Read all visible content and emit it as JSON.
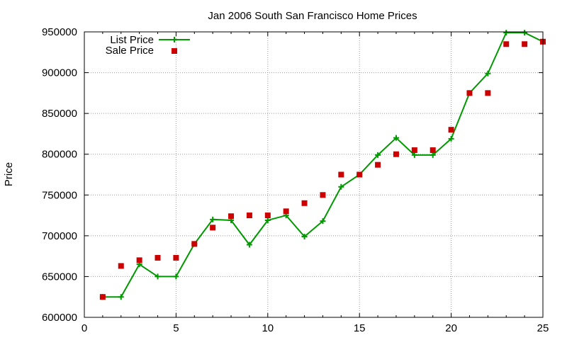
{
  "chart_data": {
    "type": "line",
    "title": "Jan 2006 South San Francisco Home Prices",
    "xlabel": "",
    "ylabel": "Price",
    "xlim": [
      0,
      25
    ],
    "ylim": [
      600000,
      950000
    ],
    "xticks": [
      "0",
      "5",
      "10",
      "15",
      "20",
      "25"
    ],
    "yticks": [
      "600000",
      "650000",
      "700000",
      "750000",
      "800000",
      "850000",
      "900000",
      "950000"
    ],
    "grid": true,
    "legend_position": "top-left",
    "series": [
      {
        "name": "List Price",
        "style": "line with plus markers",
        "color": "#009900",
        "x": [
          1,
          2,
          3,
          4,
          5,
          6,
          7,
          8,
          9,
          10,
          11,
          12,
          13,
          14,
          15,
          16,
          17,
          18,
          19,
          20,
          21,
          22,
          23,
          24,
          25
        ],
        "y": [
          625000,
          625000,
          665000,
          650000,
          650000,
          690000,
          720000,
          719000,
          689000,
          719000,
          725000,
          699000,
          718000,
          760000,
          775000,
          799000,
          820000,
          799000,
          799000,
          819000,
          875000,
          899000,
          949000,
          949000,
          938000
        ]
      },
      {
        "name": "Sale Price",
        "style": "square markers",
        "color": "#cc0000",
        "x": [
          1,
          2,
          3,
          4,
          5,
          6,
          7,
          8,
          9,
          10,
          11,
          12,
          13,
          14,
          15,
          16,
          17,
          18,
          19,
          20,
          21,
          22,
          23,
          24,
          25
        ],
        "y": [
          625000,
          663000,
          670000,
          673000,
          673000,
          690000,
          710000,
          724000,
          725000,
          725000,
          730000,
          740000,
          750000,
          775000,
          775000,
          787000,
          800000,
          805000,
          805000,
          830000,
          875000,
          875000,
          935000,
          935000,
          938000
        ]
      }
    ]
  }
}
